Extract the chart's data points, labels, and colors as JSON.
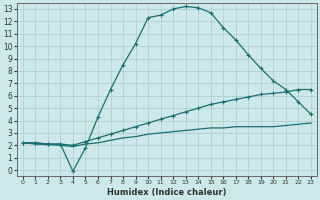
{
  "xlabel": "Humidex (Indice chaleur)",
  "bg_color": "#cce8e8",
  "grid_color": "#aacccc",
  "line_color": "#1a7070",
  "xlim": [
    -0.5,
    23.5
  ],
  "ylim": [
    -0.5,
    13.5
  ],
  "xticks": [
    0,
    1,
    2,
    3,
    4,
    5,
    6,
    7,
    8,
    9,
    10,
    11,
    12,
    13,
    14,
    15,
    16,
    17,
    18,
    19,
    20,
    21,
    22,
    23
  ],
  "yticks": [
    0,
    1,
    2,
    3,
    4,
    5,
    6,
    7,
    8,
    9,
    10,
    11,
    12,
    13
  ],
  "top_x": [
    0,
    1,
    2,
    3,
    4,
    5,
    6,
    7,
    8,
    9,
    10,
    11,
    12,
    13,
    14,
    15,
    16,
    17,
    18,
    19,
    20,
    21,
    22,
    23
  ],
  "top_y": [
    2.2,
    2.2,
    2.1,
    2.1,
    -0.1,
    1.8,
    4.3,
    6.5,
    8.5,
    10.2,
    12.3,
    12.5,
    13.0,
    13.2,
    13.1,
    12.7,
    11.5,
    10.5,
    9.3,
    8.2,
    7.2,
    6.5,
    5.5,
    4.5
  ],
  "mid_x": [
    0,
    1,
    2,
    3,
    4,
    5,
    6,
    7,
    8,
    9,
    10,
    11,
    12,
    13,
    14,
    15,
    16,
    17,
    18,
    19,
    20,
    21,
    22,
    23
  ],
  "mid_y": [
    2.2,
    2.2,
    2.1,
    2.1,
    2.0,
    2.3,
    2.6,
    2.9,
    3.2,
    3.5,
    3.8,
    4.1,
    4.4,
    4.7,
    5.0,
    5.3,
    5.5,
    5.7,
    5.9,
    6.1,
    6.2,
    6.3,
    6.5,
    6.5
  ],
  "bot_x": [
    0,
    1,
    2,
    3,
    4,
    5,
    6,
    7,
    8,
    9,
    10,
    11,
    12,
    13,
    14,
    15,
    16,
    17,
    18,
    19,
    20,
    21,
    22,
    23
  ],
  "bot_y": [
    2.2,
    2.1,
    2.05,
    2.0,
    1.9,
    2.1,
    2.2,
    2.4,
    2.6,
    2.7,
    2.9,
    3.0,
    3.1,
    3.2,
    3.3,
    3.4,
    3.4,
    3.5,
    3.5,
    3.5,
    3.5,
    3.6,
    3.7,
    3.8
  ],
  "xlabel_fontsize": 6,
  "tick_fontsize_x": 4.5,
  "tick_fontsize_y": 5.5
}
